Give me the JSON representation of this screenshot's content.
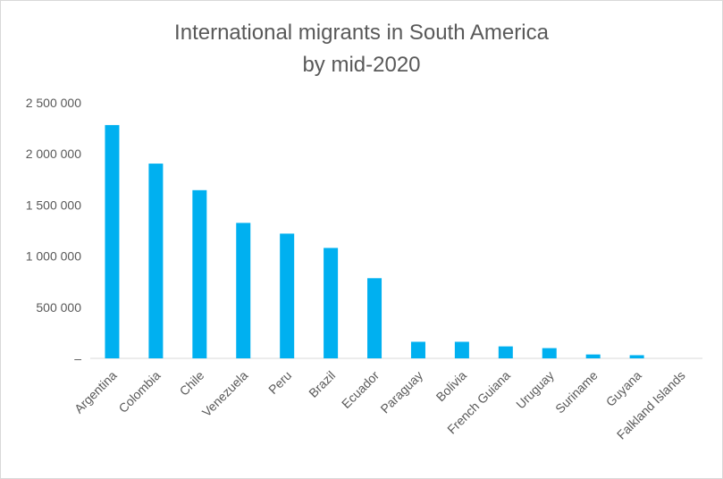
{
  "chart_data": {
    "type": "bar",
    "title": [
      "International migrants in South America",
      "by mid-2020"
    ],
    "xlabel": "",
    "ylabel": "",
    "categories": [
      "Argentina",
      "Colombia",
      "Chile",
      "Venezuela",
      "Peru",
      "Brazil",
      "Ecuador",
      "Paraguay",
      "Bolivia",
      "French Guiana",
      "Uruguay",
      "Suriname",
      "Guyana",
      "Falkland Islands"
    ],
    "values": [
      2282000,
      1905000,
      1645000,
      1325000,
      1220000,
      1080000,
      784000,
      162000,
      162000,
      117000,
      100000,
      38000,
      31000,
      0
    ],
    "ylim": [
      0,
      2500000
    ],
    "yticks": [
      0,
      500000,
      1000000,
      1500000,
      2000000,
      2500000
    ],
    "ytick_labels": [
      "–",
      "500 000",
      "1 000 000",
      "1 500 000",
      "2 000 000",
      "2 500 000"
    ],
    "grid": false,
    "legend": "none",
    "bar_color": "#00b0f0",
    "axis_color": "#d9d9d9",
    "text_color": "#595959"
  }
}
